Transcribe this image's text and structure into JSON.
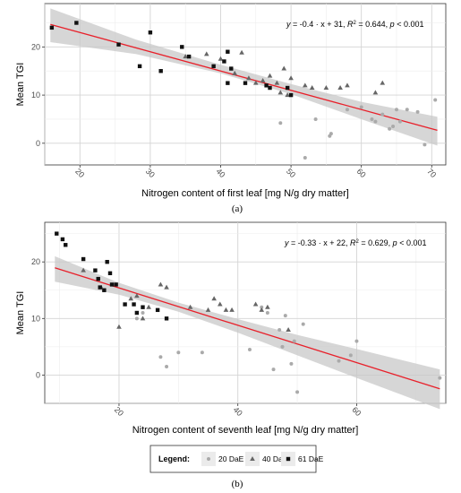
{
  "legend": {
    "title": "Legend:",
    "items": [
      {
        "label": "20 DaE",
        "shape": "circle",
        "color": "#aaaaaa"
      },
      {
        "label": "40 DaE",
        "shape": "triangle",
        "color": "#666666"
      },
      {
        "label": "61 DaE",
        "shape": "square",
        "color": "#111111"
      }
    ]
  },
  "chart_data": [
    {
      "type": "scatter",
      "panel_label": "(a)",
      "xlabel": "Nitrogen content of first leaf [mg N/g dry matter]",
      "ylabel": "Mean TGI",
      "xlim": [
        15,
        72
      ],
      "ylim": [
        -4.5,
        29
      ],
      "xticks": [
        20,
        30,
        40,
        50,
        60,
        70
      ],
      "yticks": [
        0,
        10,
        20
      ],
      "grid": true,
      "annotation": {
        "y_text": "y",
        "eq_text": " = -0.4 · x + 31,  ",
        "r2_text": "R",
        "r2_value": " = 0.644,  ",
        "p_text": "p",
        "p_value": " < 0.001"
      },
      "fit": {
        "slope": -0.4,
        "intercept": 31,
        "color": "#e8202a",
        "x_range": [
          15.8,
          70.8
        ]
      },
      "band": [
        {
          "x": 15.8,
          "lo": 21.0,
          "hi": 28.0
        },
        {
          "x": 28,
          "lo": 18.5,
          "hi": 21.5
        },
        {
          "x": 40,
          "lo": 14.5,
          "hi": 16.3
        },
        {
          "x": 50,
          "lo": 10.2,
          "hi": 12.3
        },
        {
          "x": 60,
          "lo": 5.0,
          "hi": 8.6
        },
        {
          "x": 70.8,
          "lo": -0.5,
          "hi": 5.5
        }
      ],
      "series": [
        {
          "name": "20 DaE",
          "shape": "circle",
          "color": "#aaaaaa",
          "points": [
            [
              48.5,
              4.2
            ],
            [
              52,
              -3
            ],
            [
              53.5,
              5
            ],
            [
              55.5,
              1.5
            ],
            [
              55.7,
              2
            ],
            [
              58,
              7
            ],
            [
              60,
              7.5
            ],
            [
              61.5,
              5
            ],
            [
              62,
              4.5
            ],
            [
              63,
              6
            ],
            [
              64,
              3
            ],
            [
              64.5,
              3.5
            ],
            [
              65,
              7
            ],
            [
              65.5,
              4.5
            ],
            [
              66.5,
              7
            ],
            [
              68,
              6.5
            ],
            [
              69,
              -0.3
            ],
            [
              70.5,
              9
            ]
          ]
        },
        {
          "name": "40 DaE",
          "shape": "triangle",
          "color": "#666666",
          "points": [
            [
              35,
              18
            ],
            [
              38,
              18.5
            ],
            [
              40,
              17.5
            ],
            [
              42,
              14.5
            ],
            [
              43,
              18.8
            ],
            [
              44,
              13.5
            ],
            [
              45,
              12.5
            ],
            [
              46,
              13
            ],
            [
              47,
              14
            ],
            [
              48,
              12.5
            ],
            [
              48.5,
              10.5
            ],
            [
              49,
              15.5
            ],
            [
              49.5,
              10
            ],
            [
              50,
              13.5
            ],
            [
              52,
              12
            ],
            [
              53,
              11.5
            ],
            [
              55,
              11.5
            ],
            [
              57,
              11.5
            ],
            [
              58,
              12
            ],
            [
              62,
              10.5
            ],
            [
              63,
              12.5
            ]
          ]
        },
        {
          "name": "61 DaE",
          "shape": "square",
          "color": "#111111",
          "points": [
            [
              16,
              24
            ],
            [
              19.5,
              25
            ],
            [
              25.5,
              20.5
            ],
            [
              28.5,
              16
            ],
            [
              30,
              23
            ],
            [
              31.5,
              15
            ],
            [
              34.5,
              20
            ],
            [
              35.5,
              18
            ],
            [
              39,
              16
            ],
            [
              40.5,
              17
            ],
            [
              41,
              19
            ],
            [
              41,
              12.5
            ],
            [
              41.5,
              15.5
            ],
            [
              43.5,
              12.5
            ],
            [
              46.5,
              12
            ],
            [
              47,
              11.5
            ],
            [
              49.5,
              11.5
            ],
            [
              50,
              10
            ]
          ]
        }
      ]
    },
    {
      "type": "scatter",
      "panel_label": "(b)",
      "xlabel": "Nitrogen content of seventh leaf [mg N/g dry matter]",
      "ylabel": "Mean TGI",
      "xlim": [
        7.5,
        75
      ],
      "ylim": [
        -5,
        27
      ],
      "xticks": [
        20,
        40,
        60
      ],
      "yticks": [
        0,
        10,
        20
      ],
      "grid": true,
      "annotation": {
        "y_text": "y",
        "eq_text": " = -0.33 · x + 22,  ",
        "r2_text": "R",
        "r2_value": " = 0.629,  ",
        "p_text": "p",
        "p_value": " < 0.001"
      },
      "fit": {
        "slope": -0.33,
        "intercept": 22,
        "color": "#e8202a",
        "x_range": [
          9.2,
          74
        ]
      },
      "band": [
        {
          "x": 9.2,
          "lo": 16.5,
          "hi": 21.0
        },
        {
          "x": 20,
          "lo": 14.2,
          "hi": 16.3
        },
        {
          "x": 30,
          "lo": 11.2,
          "hi": 12.8
        },
        {
          "x": 40,
          "lo": 7.5,
          "hi": 9.9
        },
        {
          "x": 50,
          "lo": 3.5,
          "hi": 7.1
        },
        {
          "x": 60,
          "lo": -0.5,
          "hi": 4.6
        },
        {
          "x": 74,
          "lo": -6,
          "hi": 1.0
        }
      ],
      "series": [
        {
          "name": "20 DaE",
          "shape": "circle",
          "color": "#aaaaaa",
          "points": [
            [
              23,
              10
            ],
            [
              24,
              11
            ],
            [
              27,
              3.2
            ],
            [
              28,
              1.5
            ],
            [
              30,
              4
            ],
            [
              34,
              4
            ],
            [
              42,
              4.5
            ],
            [
              44,
              12
            ],
            [
              45,
              11
            ],
            [
              46,
              1
            ],
            [
              47,
              8
            ],
            [
              47.5,
              5
            ],
            [
              48,
              10.5
            ],
            [
              49,
              2
            ],
            [
              49.5,
              6
            ],
            [
              50,
              -3
            ],
            [
              51,
              9
            ],
            [
              57,
              2.5
            ],
            [
              59,
              3.5
            ],
            [
              60,
              6
            ],
            [
              74,
              -0.5
            ]
          ]
        },
        {
          "name": "40 DaE",
          "shape": "triangle",
          "color": "#666666",
          "points": [
            [
              14,
              18.5
            ],
            [
              17,
              15.5
            ],
            [
              20,
              8.5
            ],
            [
              22,
              13.5
            ],
            [
              23,
              14
            ],
            [
              24,
              10
            ],
            [
              25,
              12
            ],
            [
              27,
              16
            ],
            [
              28,
              15.5
            ],
            [
              32,
              12
            ],
            [
              35,
              11.5
            ],
            [
              36,
              13.5
            ],
            [
              37,
              12.5
            ],
            [
              38,
              11.5
            ],
            [
              39,
              11.5
            ],
            [
              43,
              12.5
            ],
            [
              44,
              11.5
            ],
            [
              45,
              12
            ],
            [
              48.5,
              8
            ]
          ]
        },
        {
          "name": "61 DaE",
          "shape": "square",
          "color": "#111111",
          "points": [
            [
              9.5,
              25
            ],
            [
              10.5,
              24
            ],
            [
              11,
              23
            ],
            [
              14,
              20.5
            ],
            [
              16,
              18.5
            ],
            [
              16.5,
              17
            ],
            [
              16.8,
              15.5
            ],
            [
              17.5,
              15
            ],
            [
              18,
              20
            ],
            [
              18.5,
              18
            ],
            [
              18.8,
              16
            ],
            [
              19.5,
              16
            ],
            [
              21,
              12.5
            ],
            [
              22.5,
              12.5
            ],
            [
              23,
              11
            ],
            [
              24,
              12
            ],
            [
              26.5,
              11.5
            ],
            [
              28,
              10
            ]
          ]
        }
      ]
    }
  ]
}
